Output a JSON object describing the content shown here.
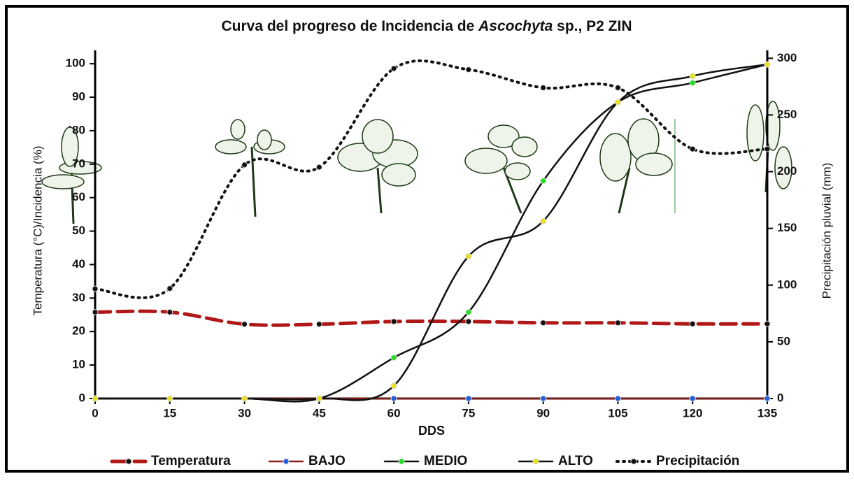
{
  "chart_data": {
    "type": "line",
    "title": [
      "Curva del progreso de Incidencia de ",
      "Ascochyta",
      " sp., P2 ZIN"
    ],
    "x_label": "DDS",
    "y_label": "Temperatura (°C)/Incidencia (%)",
    "y2_label": "Precipitación pluvial (mm)",
    "x": [
      0,
      15,
      30,
      45,
      60,
      75,
      90,
      105,
      120,
      135
    ],
    "xlim": [
      0,
      135
    ],
    "xticks": [
      0,
      15,
      30,
      45,
      60,
      75,
      90,
      105,
      120,
      135
    ],
    "ylim": [
      0,
      104
    ],
    "yticks": [
      0,
      10,
      20,
      30,
      40,
      50,
      60,
      70,
      80,
      90,
      100
    ],
    "y2lim": [
      0,
      307
    ],
    "y2ticks": [
      0,
      50,
      100,
      150,
      200,
      250,
      300
    ],
    "series": [
      {
        "name": "Temperatura",
        "color": "#b01818",
        "marker_color": "#111111",
        "style": "dashed",
        "values": [
          25.8,
          25.8,
          22.2,
          22.2,
          23,
          23,
          22.6,
          22.6,
          22.3,
          22.3
        ]
      },
      {
        "name": "BAJO",
        "color": "#8b1a1a",
        "marker_color": "#1f5fe0",
        "style": "solid",
        "values": [
          0,
          0,
          0,
          0,
          0,
          0,
          0,
          0,
          0,
          0
        ]
      },
      {
        "name": "MEDIO",
        "color": "#111111",
        "marker_color": "#22dd22",
        "style": "solid",
        "values": [
          0,
          0,
          0,
          0,
          12.2,
          25.8,
          65,
          88.5,
          94.3,
          99.8
        ]
      },
      {
        "name": "ALTO",
        "color": "#111111",
        "marker_color": "#e8e020",
        "style": "solid",
        "values": [
          0,
          0,
          0,
          0,
          3.8,
          42.5,
          53,
          88.5,
          96.3,
          99.8
        ]
      },
      {
        "name": "Precipitación",
        "color": "#111111",
        "marker_color": "#111111",
        "style": "dotted",
        "axis": "y2",
        "values": [
          96.7,
          97,
          206,
          204,
          291,
          290,
          274,
          274,
          220,
          220
        ]
      }
    ]
  }
}
